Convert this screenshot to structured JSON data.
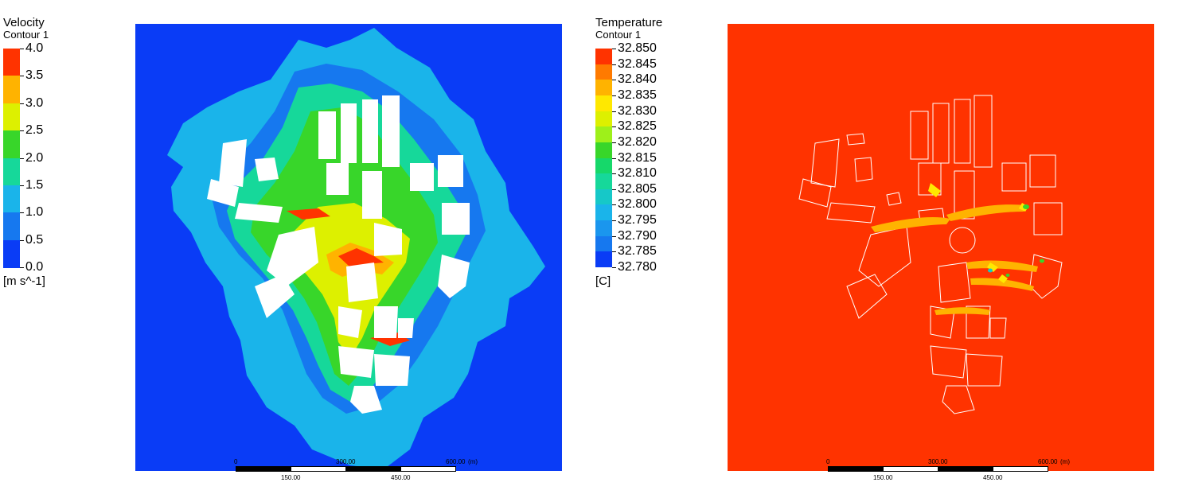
{
  "velocity_legend": {
    "title": "Velocity",
    "subtitle": "Contour 1",
    "units": "[m s^-1]",
    "labels": [
      "4.0",
      "3.5",
      "3.0",
      "2.5",
      "2.0",
      "1.5",
      "1.0",
      "0.5",
      "0.0"
    ],
    "colors": [
      "#ff3300",
      "#ffb300",
      "#ddf000",
      "#38d62a",
      "#16d89a",
      "#1ab4ea",
      "#1678ef",
      "#0a3cf6"
    ]
  },
  "temperature_legend": {
    "title": "Temperature",
    "subtitle": "Contour 1",
    "units": "[C]",
    "labels": [
      "32.850",
      "32.845",
      "32.840",
      "32.835",
      "32.830",
      "32.825",
      "32.820",
      "32.815",
      "32.810",
      "32.805",
      "32.800",
      "32.795",
      "32.790",
      "32.785",
      "32.780"
    ],
    "colors": [
      "#ff3300",
      "#ff7a00",
      "#ffb300",
      "#ffe800",
      "#ddf000",
      "#9ef01a",
      "#38d62a",
      "#16d86a",
      "#16d89a",
      "#16c8c8",
      "#1ab4ea",
      "#1a96ee",
      "#1678ef",
      "#0a3cf6"
    ]
  },
  "velocity_panel": {
    "background": "#0a3cf6",
    "scale_top": [
      "0",
      "300.00",
      "600.00",
      "(m)"
    ],
    "scale_bottom": [
      "150.00",
      "450.00"
    ]
  },
  "temperature_panel": {
    "background": "#ff3300",
    "scale_top": [
      "0",
      "300.00",
      "600.00",
      "(m)"
    ],
    "scale_bottom": [
      "150.00",
      "450.00"
    ]
  }
}
